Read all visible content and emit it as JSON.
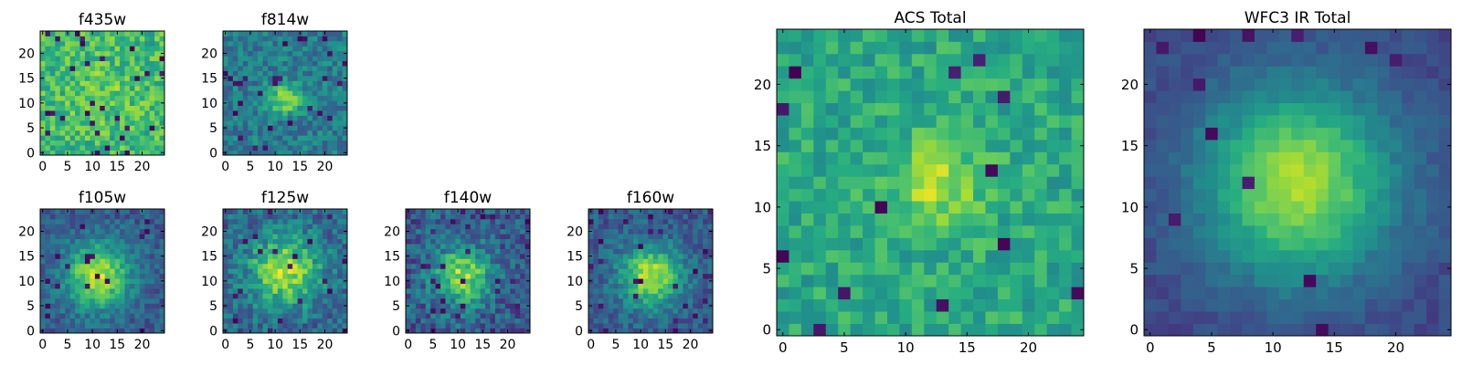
{
  "chart_data": [
    {
      "type": "heatmap",
      "title": "f435w",
      "xticks": [
        "0",
        "5",
        "10",
        "15",
        "20"
      ],
      "yticks": [
        "0",
        "5",
        "10",
        "15",
        "20"
      ],
      "grid": false,
      "xlim": [
        -0.5,
        24.5
      ],
      "ylim": [
        -0.5,
        24.5
      ],
      "colormap": "viridis",
      "pattern": {
        "seed": 11,
        "cx": 12,
        "cy": 12,
        "sigma": 4,
        "amp": 0.08,
        "base": 0.68,
        "noise": 0.17,
        "outlier": 0.04
      }
    },
    {
      "type": "heatmap",
      "title": "f814w",
      "xticks": [
        "0",
        "5",
        "10",
        "15",
        "20"
      ],
      "yticks": [
        "0",
        "5",
        "10",
        "15",
        "20"
      ],
      "grid": false,
      "xlim": [
        -0.5,
        24.5
      ],
      "ylim": [
        -0.5,
        24.5
      ],
      "colormap": "viridis",
      "pattern": {
        "seed": 23,
        "cx": 12,
        "cy": 11,
        "sigma": 2.2,
        "amp": 0.45,
        "base": 0.42,
        "noise": 0.15,
        "outlier": 0.04
      }
    },
    {
      "type": "heatmap",
      "title": "f105w",
      "xticks": [
        "0",
        "5",
        "10",
        "15",
        "20"
      ],
      "yticks": [
        "0",
        "5",
        "10",
        "15",
        "20"
      ],
      "grid": false,
      "xlim": [
        -0.5,
        24.5
      ],
      "ylim": [
        -0.5,
        24.5
      ],
      "colormap": "viridis",
      "pattern": {
        "seed": 37,
        "cx": 11,
        "cy": 11,
        "sigma": 4.5,
        "amp": 0.6,
        "base": 0.3,
        "noise": 0.12,
        "outlier": 0.03
      }
    },
    {
      "type": "heatmap",
      "title": "f125w",
      "xticks": [
        "0",
        "5",
        "10",
        "15",
        "20"
      ],
      "yticks": [
        "0",
        "5",
        "10",
        "15",
        "20"
      ],
      "grid": false,
      "xlim": [
        -0.5,
        24.5
      ],
      "ylim": [
        -0.5,
        24.5
      ],
      "colormap": "viridis",
      "pattern": {
        "seed": 41,
        "cx": 12,
        "cy": 12,
        "sigma": 5,
        "amp": 0.55,
        "base": 0.33,
        "noise": 0.16,
        "outlier": 0.04
      }
    },
    {
      "type": "heatmap",
      "title": "f140w",
      "xticks": [
        "0",
        "5",
        "10",
        "15",
        "20"
      ],
      "yticks": [
        "0",
        "5",
        "10",
        "15",
        "20"
      ],
      "grid": false,
      "xlim": [
        -0.5,
        24.5
      ],
      "ylim": [
        -0.5,
        24.5
      ],
      "colormap": "viridis",
      "pattern": {
        "seed": 53,
        "cx": 11,
        "cy": 11,
        "sigma": 4,
        "amp": 0.55,
        "base": 0.3,
        "noise": 0.17,
        "outlier": 0.05
      }
    },
    {
      "type": "heatmap",
      "title": "f160w",
      "xticks": [
        "0",
        "5",
        "10",
        "15",
        "20"
      ],
      "yticks": [
        "0",
        "5",
        "10",
        "15",
        "20"
      ],
      "grid": false,
      "xlim": [
        -0.5,
        24.5
      ],
      "ylim": [
        -0.5,
        24.5
      ],
      "colormap": "viridis",
      "pattern": {
        "seed": 67,
        "cx": 12,
        "cy": 11,
        "sigma": 4.2,
        "amp": 0.6,
        "base": 0.3,
        "noise": 0.12,
        "outlier": 0.04
      }
    },
    {
      "type": "heatmap",
      "title": "ACS Total",
      "xticks": [
        "0",
        "5",
        "10",
        "15",
        "20"
      ],
      "yticks": [
        "0",
        "5",
        "10",
        "15",
        "20"
      ],
      "grid": false,
      "xlim": [
        -0.5,
        24.5
      ],
      "ylim": [
        -0.5,
        24.5
      ],
      "colormap": "viridis",
      "pattern": {
        "seed": 79,
        "cx": 12.5,
        "cy": 12,
        "sigma": 2.6,
        "amp": 0.3,
        "base": 0.6,
        "noise": 0.13,
        "outlier": 0.025
      }
    },
    {
      "type": "heatmap",
      "title": "WFC3 IR Total",
      "xticks": [
        "0",
        "5",
        "10",
        "15",
        "20"
      ],
      "yticks": [
        "0",
        "5",
        "10",
        "15",
        "20"
      ],
      "grid": false,
      "xlim": [
        -0.5,
        24.5
      ],
      "ylim": [
        -0.5,
        24.5
      ],
      "colormap": "viridis",
      "pattern": {
        "seed": 97,
        "cx": 12,
        "cy": 12,
        "sigma": 5.5,
        "amp": 0.65,
        "base": 0.22,
        "noise": 0.05,
        "outlier": 0.015
      }
    }
  ]
}
